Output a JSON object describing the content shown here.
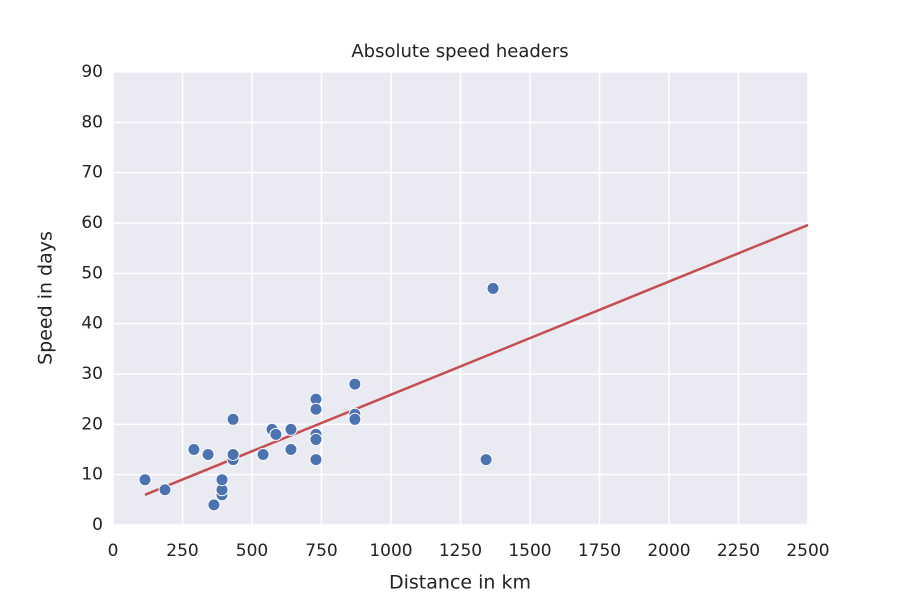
{
  "chart_data": {
    "type": "scatter",
    "title": "Absolute speed headers",
    "x_label": "Distance in km",
    "y_label": "Speed in days",
    "x": [
      115,
      187,
      291,
      342,
      363,
      392,
      392,
      392,
      432,
      432,
      432,
      540,
      572,
      586,
      640,
      640,
      730,
      730,
      730,
      730,
      730,
      870,
      870,
      870,
      1342,
      1367
    ],
    "y": [
      9,
      7,
      15,
      14,
      4,
      6,
      7,
      9,
      21,
      13,
      14,
      14,
      19,
      18,
      19,
      15,
      25,
      23,
      18,
      17,
      13,
      28,
      22,
      21,
      13,
      47
    ],
    "color": "#4c72b0",
    "trend_line": {
      "x": [
        115,
        2500
      ],
      "y": [
        6,
        59.6
      ],
      "color": "#c44e52"
    },
    "xlim": [
      0,
      2500
    ],
    "xticks": [
      0,
      250,
      500,
      750,
      1000,
      1250,
      1500,
      1750,
      2000,
      2250,
      2500
    ],
    "ylim": [
      0,
      90
    ],
    "yticks": [
      0,
      10,
      20,
      30,
      40,
      50,
      60,
      70,
      80,
      90
    ],
    "grid": true
  }
}
